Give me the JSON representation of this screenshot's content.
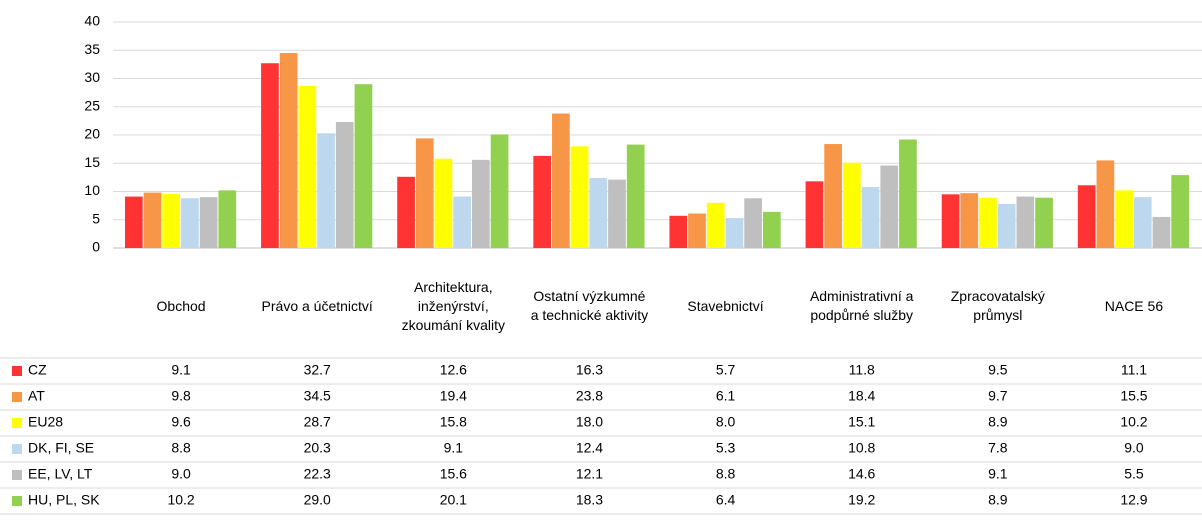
{
  "chart_data": {
    "type": "bar",
    "categories": [
      "Obchod",
      "Právo a účetnictví",
      "Architektura, inženýrství, zkoumání kvality",
      "Ostatní výzkumné a technické aktivity",
      "Stavebnictví",
      "Administrativní a podpůrné služby",
      "Zpracovatalský průmysl",
      "NACE 56"
    ],
    "series": [
      {
        "name": "CZ",
        "color": "#ff3333",
        "values": [
          9.1,
          32.7,
          12.6,
          16.3,
          5.7,
          11.8,
          9.5,
          11.1
        ],
        "value_labels": [
          "9.1",
          "32.7",
          "12.6",
          "16.3",
          "5.7",
          "11.8",
          "9.5",
          "11.1"
        ]
      },
      {
        "name": "AT",
        "color": "#f79646",
        "values": [
          9.8,
          34.5,
          19.4,
          23.8,
          6.1,
          18.4,
          9.7,
          15.5
        ],
        "value_labels": [
          "9.8",
          "34.5",
          "19.4",
          "23.8",
          "6.1",
          "18.4",
          "9.7",
          "15.5"
        ]
      },
      {
        "name": "EU28",
        "color": "#ffff00",
        "values": [
          9.6,
          28.7,
          15.8,
          18.0,
          8.0,
          15.1,
          8.9,
          10.2
        ],
        "value_labels": [
          "9.6",
          "28.7",
          "15.8",
          "18.0",
          "8.0",
          "15.1",
          "8.9",
          "10.2"
        ]
      },
      {
        "name": "DK, FI, SE",
        "color": "#bdd7ee",
        "values": [
          8.8,
          20.3,
          9.1,
          12.4,
          5.3,
          10.8,
          7.8,
          9.0
        ],
        "value_labels": [
          "8.8",
          "20.3",
          "9.1",
          "12.4",
          "5.3",
          "10.8",
          "7.8",
          "9.0"
        ]
      },
      {
        "name": "EE, LV, LT",
        "color": "#bfbfbf",
        "values": [
          9.0,
          22.3,
          15.6,
          12.1,
          8.8,
          14.6,
          9.1,
          5.5
        ],
        "value_labels": [
          "9.0",
          "22.3",
          "15.6",
          "12.1",
          "8.8",
          "14.6",
          "9.1",
          "5.5"
        ]
      },
      {
        "name": "HU, PL, SK",
        "color": "#92d050",
        "values": [
          10.2,
          29.0,
          20.1,
          18.3,
          6.4,
          19.2,
          8.9,
          12.9
        ],
        "value_labels": [
          "10.2",
          "29.0",
          "20.1",
          "18.3",
          "6.4",
          "19.2",
          "8.9",
          "12.9"
        ]
      }
    ],
    "ylim": [
      0,
      40
    ],
    "yticks": [
      0,
      5,
      10,
      15,
      20,
      25,
      30,
      35,
      40
    ],
    "grid": true
  }
}
